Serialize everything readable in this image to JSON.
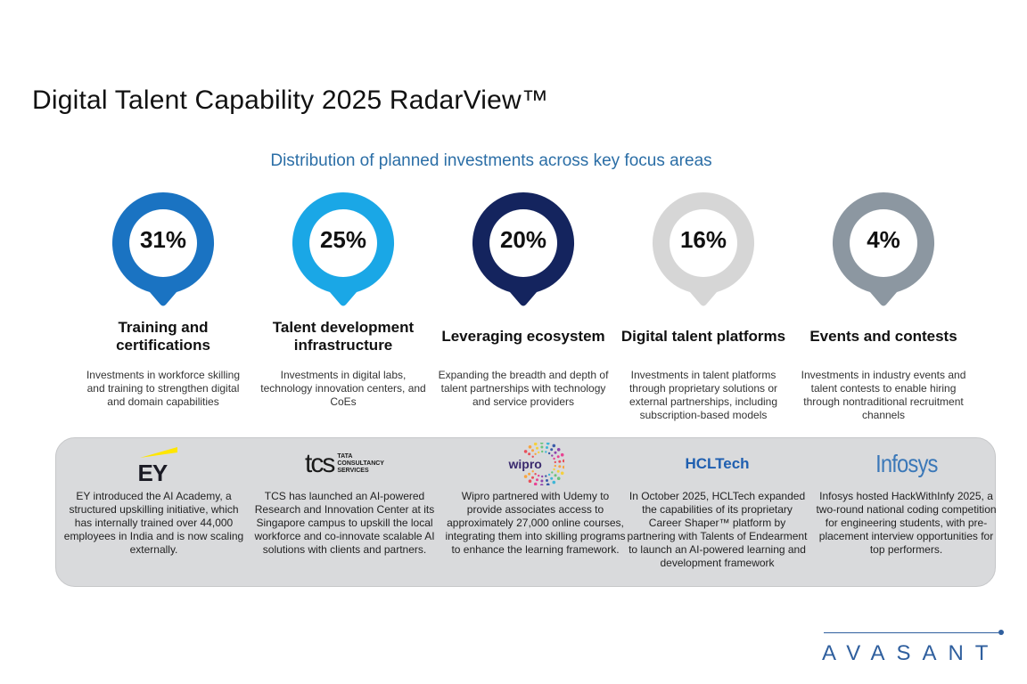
{
  "title": "Digital Talent Capability 2025 RadarView™",
  "subtitle": "Distribution of planned investments across key focus areas",
  "focus_areas": [
    {
      "percent": "31%",
      "value": 31,
      "title": "Training and certifications",
      "description": "Investments in workforce skilling and training to strengthen digital and domain capabilities",
      "color": "#1a73c2"
    },
    {
      "percent": "25%",
      "value": 25,
      "title": "Talent development infrastructure",
      "description": "Investments in digital labs, technology innovation centers, and CoEs",
      "color": "#1aa7e6"
    },
    {
      "percent": "20%",
      "value": 20,
      "title": "Leveraging ecosystem",
      "description": "Expanding the breadth and depth of talent partnerships with technology and service providers",
      "color": "#14245e"
    },
    {
      "percent": "16%",
      "value": 16,
      "title": "Digital talent platforms",
      "description": "Investments in talent platforms through proprietary solutions or external partnerships, including subscription-based models",
      "color": "#d6d6d6"
    },
    {
      "percent": "4%",
      "value": 4,
      "title": "Events and contests",
      "description": "Investments in industry events and talent contests to enable hiring through nontraditional recruitment channels",
      "color": "#8c97a1"
    }
  ],
  "companies": [
    {
      "name": "EY",
      "logo_icon": "ey-logo",
      "description": "EY introduced the AI Academy, a structured upskilling initiative, which has internally trained over 44,000 employees in India and is now scaling externally."
    },
    {
      "name": "tcs",
      "logo_sub": [
        "TATA",
        "CONSULTANCY",
        "SERVICES"
      ],
      "logo_icon": "tcs-logo",
      "description": "TCS has launched an AI-powered Research and Innovation Center at its Singapore campus to upskill the local workforce and co-innovate scalable AI solutions with clients and partners."
    },
    {
      "name": "wipro",
      "logo_icon": "wipro-logo",
      "description": "Wipro partnered with Udemy to provide associates access to approximately 27,000 online courses, integrating them into skilling programs to enhance the learning framework."
    },
    {
      "name": "HCLTech",
      "logo_icon": "hcltech-logo",
      "description": "In October 2025, HCLTech expanded the capabilities of its proprietary Career Shaper™ platform by partnering with Talents of Endearment to launch an AI-powered learning and development framework"
    },
    {
      "name": "Infosys",
      "logo_icon": "infosys-logo",
      "description": "Infosys hosted HackWithInfy 2025, a two-round national coding competition for engineering students, with pre-placement interview opportunities for top performers."
    }
  ],
  "brand": {
    "name": "AVASANT",
    "color": "#2f5f9e"
  }
}
